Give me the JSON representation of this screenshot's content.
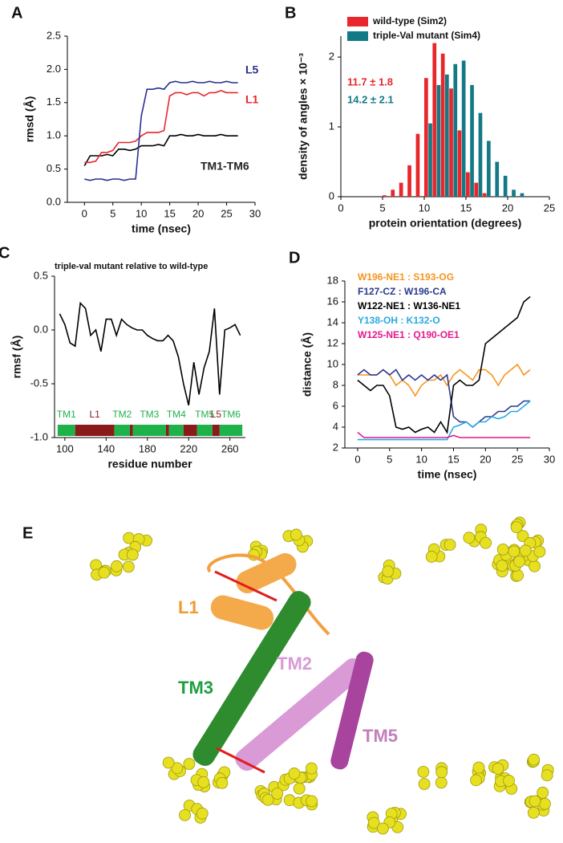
{
  "chart_data": [
    {
      "type": "line",
      "panel": "A",
      "xlabel": "time (nsec)",
      "ylabel": "rmsd (Å)",
      "xlim": [
        -3,
        30
      ],
      "xticks": [
        0,
        5,
        10,
        15,
        20,
        25,
        30
      ],
      "ylim": [
        0,
        2.5
      ],
      "yticks": [
        {
          "value": 0,
          "label": "0.0"
        },
        {
          "value": 0.5,
          "label": "0.5"
        },
        {
          "value": 1,
          "label": "1.0"
        },
        {
          "value": 1.5,
          "label": "1.5"
        },
        {
          "value": 2,
          "label": "2.0"
        },
        {
          "value": 2.5,
          "label": "2.5"
        }
      ],
      "x": [
        0,
        1,
        2,
        3,
        4,
        5,
        6,
        7,
        8,
        9,
        10,
        11,
        12,
        13,
        14,
        15,
        16,
        17,
        18,
        19,
        20,
        21,
        22,
        23,
        24,
        25,
        26,
        27
      ],
      "series": [
        {
          "name": "TM1-TM6",
          "color": "#000000",
          "values": [
            0.55,
            0.7,
            0.7,
            0.7,
            0.72,
            0.7,
            0.8,
            0.8,
            0.78,
            0.8,
            0.85,
            0.85,
            0.85,
            0.87,
            0.85,
            1.0,
            1.0,
            1.02,
            1.0,
            1.0,
            1.02,
            1.0,
            1.0,
            1.0,
            1.02,
            1.0,
            1.0,
            1.0
          ]
        },
        {
          "name": "L1",
          "color": "#e8262b",
          "values": [
            0.6,
            0.6,
            0.62,
            0.75,
            0.75,
            0.78,
            0.9,
            0.9,
            0.9,
            0.92,
            1.0,
            1.05,
            1.05,
            1.05,
            1.08,
            1.6,
            1.65,
            1.65,
            1.62,
            1.65,
            1.65,
            1.6,
            1.65,
            1.65,
            1.68,
            1.65,
            1.65,
            1.65
          ]
        },
        {
          "name": "L5",
          "color": "#2b2f8f",
          "values": [
            0.35,
            0.33,
            0.35,
            0.35,
            0.33,
            0.35,
            0.35,
            0.33,
            0.35,
            0.35,
            1.3,
            1.7,
            1.7,
            1.72,
            1.7,
            1.8,
            1.82,
            1.8,
            1.8,
            1.82,
            1.8,
            1.8,
            1.82,
            1.8,
            1.8,
            1.82,
            1.8,
            1.8
          ]
        }
      ]
    },
    {
      "type": "histogram",
      "panel": "B",
      "xlabel": "protein orientation (degrees)",
      "ylabel": "density of angles × 10⁻³",
      "xlim": [
        0,
        25
      ],
      "xticks": [
        0,
        5,
        10,
        15,
        20,
        25
      ],
      "ylim": [
        0,
        2.3
      ],
      "yticks": [
        0,
        1,
        2
      ],
      "bins": [
        5,
        6,
        7,
        8,
        9,
        10,
        11,
        12,
        13,
        14,
        15,
        16,
        17,
        18,
        19,
        20,
        21,
        22
      ],
      "series": [
        {
          "name": "wild-type (Sim2)",
          "color": "#e8262b",
          "values": [
            0.02,
            0.1,
            0.2,
            0.45,
            0.9,
            1.7,
            2.2,
            2.05,
            1.55,
            0.95,
            0.35,
            0.2,
            0.05,
            0,
            0,
            0,
            0
          ]
        },
        {
          "name": "triple-Val mutant (Sim4)",
          "color": "#137a85",
          "values": [
            0,
            0,
            0,
            0,
            0,
            1.05,
            1.6,
            1.75,
            1.9,
            1.95,
            1.6,
            1.2,
            0.8,
            0.5,
            0.3,
            0.1,
            0.05
          ]
        }
      ],
      "annotations": [
        {
          "text": "11.7 ± 1.8",
          "color": "#e8262b"
        },
        {
          "text": "14.2 ± 2.1",
          "color": "#137a85"
        }
      ]
    },
    {
      "type": "line",
      "panel": "C",
      "subtitle": "triple-val mutant relative to wild-type",
      "xlabel": "residue number",
      "ylabel": "rmsf (Å)",
      "xlim": [
        90,
        275
      ],
      "xticks": [
        100,
        140,
        180,
        220,
        260
      ],
      "ylim": [
        -1,
        0.5
      ],
      "yticks": [
        {
          "value": 0.5,
          "label": "0.5"
        },
        {
          "value": 0,
          "label": "0.0"
        },
        {
          "value": -0.5,
          "label": "-0.5"
        },
        {
          "value": -1,
          "label": "-1.0"
        }
      ],
      "x": [
        95,
        100,
        105,
        110,
        115,
        120,
        125,
        130,
        135,
        140,
        145,
        150,
        155,
        160,
        165,
        170,
        175,
        180,
        185,
        190,
        195,
        200,
        205,
        210,
        215,
        220,
        225,
        230,
        235,
        240,
        245,
        250,
        255,
        260,
        265,
        270
      ],
      "series": [
        {
          "color": "#000000",
          "values": [
            0.15,
            0.05,
            -0.12,
            -0.15,
            0.25,
            0.2,
            -0.05,
            0.0,
            -0.2,
            0.1,
            0.1,
            -0.05,
            0.1,
            0.05,
            0.02,
            0.0,
            0.0,
            -0.05,
            -0.08,
            -0.1,
            -0.1,
            -0.05,
            -0.1,
            -0.25,
            -0.5,
            -0.7,
            -0.3,
            -0.6,
            -0.35,
            -0.2,
            0.2,
            -0.6,
            0.0,
            0.02,
            0.05,
            -0.05
          ]
        }
      ],
      "segments": [
        {
          "label": "TM1",
          "start": 93,
          "end": 110,
          "color": "#1fb24a"
        },
        {
          "label": "L1",
          "start": 110,
          "end": 148,
          "color": "#8b1a1a"
        },
        {
          "label": "TM2",
          "start": 148,
          "end": 163,
          "color": "#1fb24a"
        },
        {
          "label": null,
          "start": 163,
          "end": 166,
          "color": "#8b1a1a"
        },
        {
          "label": "TM3",
          "start": 166,
          "end": 198,
          "color": "#1fb24a"
        },
        {
          "label": null,
          "start": 198,
          "end": 201,
          "color": "#8b1a1a"
        },
        {
          "label": "TM4",
          "start": 201,
          "end": 215,
          "color": "#1fb24a"
        },
        {
          "label": null,
          "start": 215,
          "end": 228,
          "color": "#8b1a1a"
        },
        {
          "label": "TM5",
          "start": 228,
          "end": 243,
          "color": "#1fb24a"
        },
        {
          "label": "L5",
          "start": 243,
          "end": 250,
          "color": "#8b1a1a"
        },
        {
          "label": "TM6",
          "start": 250,
          "end": 272,
          "color": "#1fb24a"
        }
      ]
    },
    {
      "type": "line",
      "panel": "D",
      "xlabel": "time (nsec)",
      "ylabel": "distance (Å)",
      "xlim": [
        -2,
        30
      ],
      "xticks": [
        0,
        5,
        10,
        15,
        20,
        25,
        30
      ],
      "ylim": [
        2,
        18
      ],
      "yticks": [
        2,
        4,
        6,
        8,
        10,
        12,
        14,
        16,
        18
      ],
      "x": [
        0,
        1,
        2,
        3,
        4,
        5,
        6,
        7,
        8,
        9,
        10,
        11,
        12,
        13,
        14,
        15,
        16,
        17,
        18,
        19,
        20,
        21,
        22,
        23,
        24,
        25,
        26,
        27
      ],
      "series": [
        {
          "name": "W196-NE1 : S193-OG",
          "color": "#f7941d",
          "values": [
            9,
            9,
            9,
            9,
            9.5,
            9,
            8,
            8.5,
            8,
            7,
            8,
            8.5,
            8.5,
            9,
            8,
            9,
            9.5,
            9,
            8.5,
            9.5,
            9.5,
            9,
            8,
            9,
            9.5,
            10,
            9,
            9.5
          ]
        },
        {
          "name": "F127-CZ   : W196-CA",
          "color": "#2b3990",
          "values": [
            9,
            9.5,
            9,
            9,
            9.5,
            9,
            9.5,
            8.5,
            9,
            8.5,
            9,
            8.5,
            9,
            8.5,
            9,
            5,
            4.5,
            4.5,
            4,
            4.5,
            5,
            5,
            5.5,
            5.5,
            6,
            6,
            6.5,
            6.5
          ]
        },
        {
          "name": "W122-NE1 : W136-NE1",
          "color": "#000000",
          "values": [
            8.5,
            8,
            7.5,
            8,
            8,
            7,
            4,
            3.8,
            4,
            3.5,
            3.8,
            4,
            3.5,
            4.5,
            3.5,
            8,
            8.5,
            8,
            8,
            8.5,
            12,
            12.5,
            13,
            13.5,
            14,
            14.5,
            16,
            16.5
          ]
        },
        {
          "name": "Y138-OH   : K132-O",
          "color": "#27aae1",
          "values": [
            2.8,
            2.8,
            2.8,
            2.8,
            2.8,
            2.8,
            2.8,
            2.8,
            2.8,
            2.8,
            2.8,
            2.8,
            2.8,
            2.8,
            2.8,
            4,
            4.2,
            4.5,
            4,
            4.5,
            4.5,
            5,
            4.8,
            5,
            5.5,
            5.5,
            6,
            6.5
          ]
        },
        {
          "name": "W125-NE1 : Q190-OE1",
          "color": "#e6178c",
          "values": [
            3.5,
            3,
            3,
            3,
            3,
            3,
            3,
            3,
            3,
            3,
            3,
            3,
            3,
            3,
            3,
            3.2,
            3,
            3,
            3,
            3,
            3,
            3,
            3,
            3,
            3,
            3,
            3,
            3
          ]
        }
      ]
    }
  ],
  "molecular_view": {
    "panel": "E",
    "labels": [
      "L1",
      "TM3",
      "TM2",
      "TM5"
    ]
  }
}
